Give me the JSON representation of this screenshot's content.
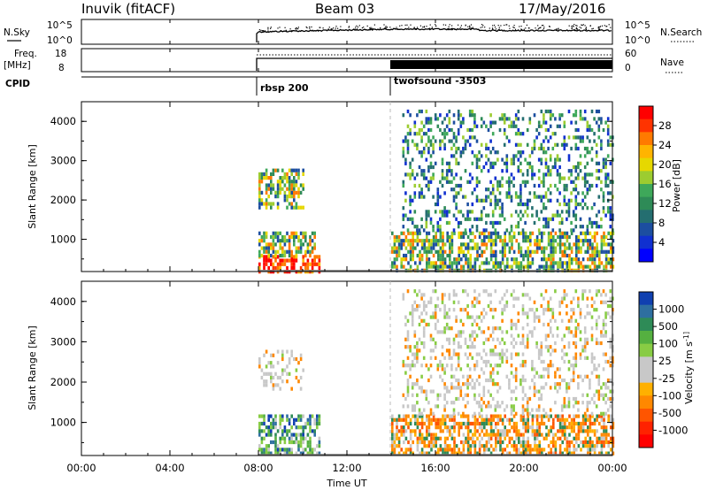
{
  "header": {
    "station": "Inuvik (fitACF)",
    "beam": "Beam 03",
    "date": "17/May/2016"
  },
  "panels": {
    "nsky": {
      "left_label": "N.Sky",
      "right_label": "N.Search",
      "left_ticks": [
        "10^5",
        "10^0"
      ],
      "right_ticks": [
        "10^5",
        "10^0"
      ]
    },
    "freq": {
      "left_label_1": "Freq.",
      "left_label_2": "[MHz]",
      "right_label": "Nave",
      "left_ticks": [
        "18",
        "8"
      ],
      "right_ticks": [
        "60",
        "0"
      ]
    },
    "cpid": {
      "label": "CPID",
      "programs": [
        "rbsp 200",
        "twofsound -3503"
      ]
    }
  },
  "chart_data": [
    {
      "type": "heatmap",
      "name": "power",
      "ylabel": "Slant Range [km]",
      "yticks": [
        "4000",
        "3000",
        "2000",
        "1000"
      ],
      "ytick_values": [
        4000,
        3000,
        2000,
        1000
      ],
      "ylim": [
        180,
        4500
      ],
      "xlim": [
        0,
        24
      ],
      "colorbar": {
        "label": "Power [dB]",
        "ticks": [
          "28",
          "24",
          "20",
          "16",
          "12",
          "8",
          "4"
        ],
        "colors": [
          "#ff0000",
          "#ff3300",
          "#ff7a00",
          "#ffb400",
          "#e6d800",
          "#9ccc30",
          "#3ea85a",
          "#2e8b57",
          "#246e70",
          "#1c4ea0",
          "#1030d0",
          "#0000ff"
        ]
      },
      "regions": [
        {
          "x": [
            8.0,
            10.8
          ],
          "y": [
            200,
            600
          ],
          "level": "high"
        },
        {
          "x": [
            8.0,
            10.5
          ],
          "y": [
            600,
            1200
          ],
          "level": "mid"
        },
        {
          "x": [
            8.0,
            10.0
          ],
          "y": [
            1800,
            2800
          ],
          "level": "mid"
        },
        {
          "x": [
            14.0,
            24.0
          ],
          "y": [
            200,
            1200
          ],
          "level": "mid"
        },
        {
          "x": [
            14.5,
            24.0
          ],
          "y": [
            1200,
            4300
          ],
          "level": "low"
        }
      ]
    },
    {
      "type": "heatmap",
      "name": "velocity",
      "ylabel": "Slant Range [km]",
      "yticks": [
        "4000",
        "3000",
        "2000",
        "1000"
      ],
      "ytick_values": [
        4000,
        3000,
        2000,
        1000
      ],
      "ylim": [
        180,
        4500
      ],
      "xlim": [
        0,
        24
      ],
      "colorbar": {
        "label": "Velocity [m s^-1]",
        "ticks": [
          "1000",
          "500",
          "100",
          "25",
          "-25",
          "-100",
          "-500",
          "-1000"
        ],
        "colors": [
          "#1040b0",
          "#2e6fa0",
          "#2e8b57",
          "#55b040",
          "#88cc44",
          "#c8c8c8",
          "#c8c8c8",
          "#ffb000",
          "#ff8800",
          "#ff5500",
          "#ff2200",
          "#ff0000"
        ]
      },
      "regions": [
        {
          "x": [
            8.0,
            10.8
          ],
          "y": [
            200,
            1200
          ],
          "level": "positive"
        },
        {
          "x": [
            8.0,
            10.0
          ],
          "y": [
            1800,
            2800
          ],
          "level": "near-zero"
        },
        {
          "x": [
            14.0,
            24.0
          ],
          "y": [
            200,
            1200
          ],
          "level": "negative"
        },
        {
          "x": [
            14.5,
            24.0
          ],
          "y": [
            1200,
            4300
          ],
          "level": "near-zero"
        }
      ]
    }
  ],
  "xaxis": {
    "label": "Time UT",
    "ticks": [
      "00:00",
      "04:00",
      "08:00",
      "12:00",
      "16:00",
      "20:00",
      "00:00"
    ],
    "tick_values": [
      0,
      4,
      8,
      12,
      16,
      20,
      24
    ]
  }
}
